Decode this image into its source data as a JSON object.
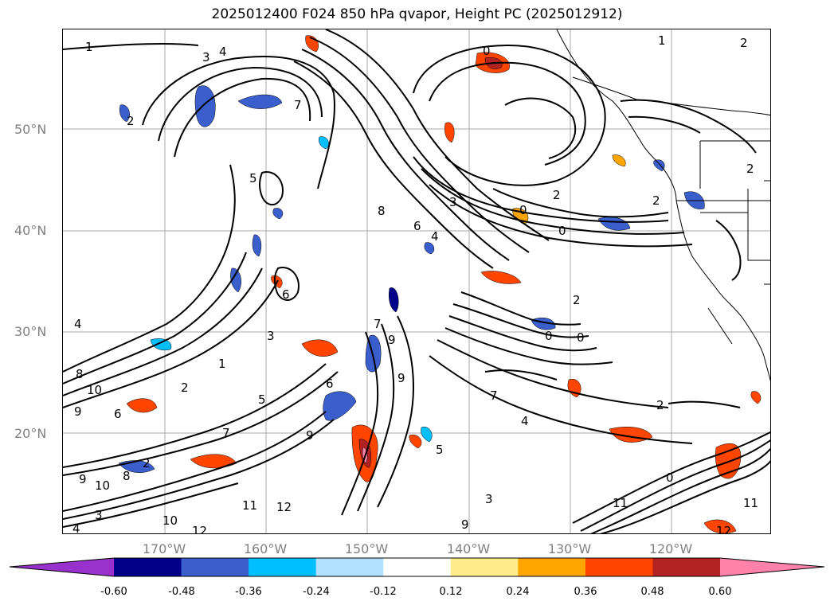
{
  "title": "2025012400 F024 850 hPa qvapor, Height PC (2025012912)",
  "lat_labels": [
    "50°N",
    "40°N",
    "30°N",
    "20°N"
  ],
  "lon_labels": [
    "170°W",
    "160°W",
    "150°W",
    "140°W",
    "130°W",
    "120°W"
  ],
  "colorbar": {
    "ticks": [
      "-0.60",
      "-0.48",
      "-0.36",
      "-0.24",
      "-0.12",
      "0.12",
      "0.24",
      "0.36",
      "0.48",
      "0.60"
    ],
    "colors": [
      "#9932cc",
      "#00008b",
      "#3a5fcd",
      "#00bfff",
      "#b0e2ff",
      "#ffffff",
      "#ffec8b",
      "#ffa500",
      "#ff4500",
      "#b22222",
      "#ff82ab"
    ]
  },
  "contour_labels": [
    "1",
    "4",
    "3",
    "2",
    "0",
    "7",
    "5",
    "8",
    "6",
    "4",
    "3",
    "2",
    "0",
    "0",
    "2",
    "2",
    "6",
    "10",
    "9",
    "8",
    "7",
    "1",
    "2",
    "6",
    "5",
    "3",
    "9",
    "6",
    "7",
    "4",
    "0",
    "0",
    "4",
    "2",
    "9",
    "10",
    "8",
    "11",
    "12",
    "12",
    "10",
    "3",
    "9",
    "11",
    "0",
    "11",
    "12",
    "2",
    "1",
    "5",
    "2",
    "2",
    "4",
    "7",
    "3",
    "9",
    "9"
  ]
}
